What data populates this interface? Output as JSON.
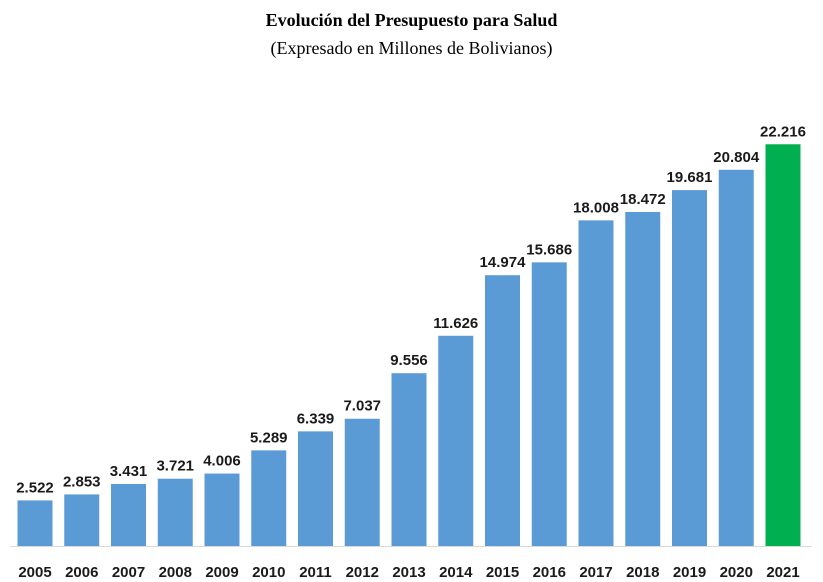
{
  "chart_data": {
    "type": "bar",
    "title": "Evolución del Presupuesto para Salud",
    "subtitle": "(Expresado en Millones de Bolivianos)",
    "xlabel": "",
    "ylabel": "",
    "categories": [
      "2005",
      "2006",
      "2007",
      "2008",
      "2009",
      "2010",
      "2011",
      "2012",
      "2013",
      "2014",
      "2015",
      "2016",
      "2017",
      "2018",
      "2019",
      "2020",
      "2021"
    ],
    "values": [
      2522,
      2853,
      3431,
      3721,
      4006,
      5289,
      6339,
      7037,
      9556,
      11626,
      14974,
      15686,
      18008,
      18472,
      19681,
      20804,
      22216
    ],
    "data_labels": [
      "2.522",
      "2.853",
      "3.431",
      "3.721",
      "4.006",
      "5.289",
      "6.339",
      "7.037",
      "9.556",
      "11.626",
      "14.974",
      "15.686",
      "18.008",
      "18.472",
      "19.681",
      "20.804",
      "22.216"
    ],
    "ylim": [
      0,
      24000
    ],
    "grid": false,
    "legend": "none",
    "colors": {
      "default": "#5b9bd5",
      "highlight": "#00b050",
      "highlight_category": "2021"
    }
  }
}
